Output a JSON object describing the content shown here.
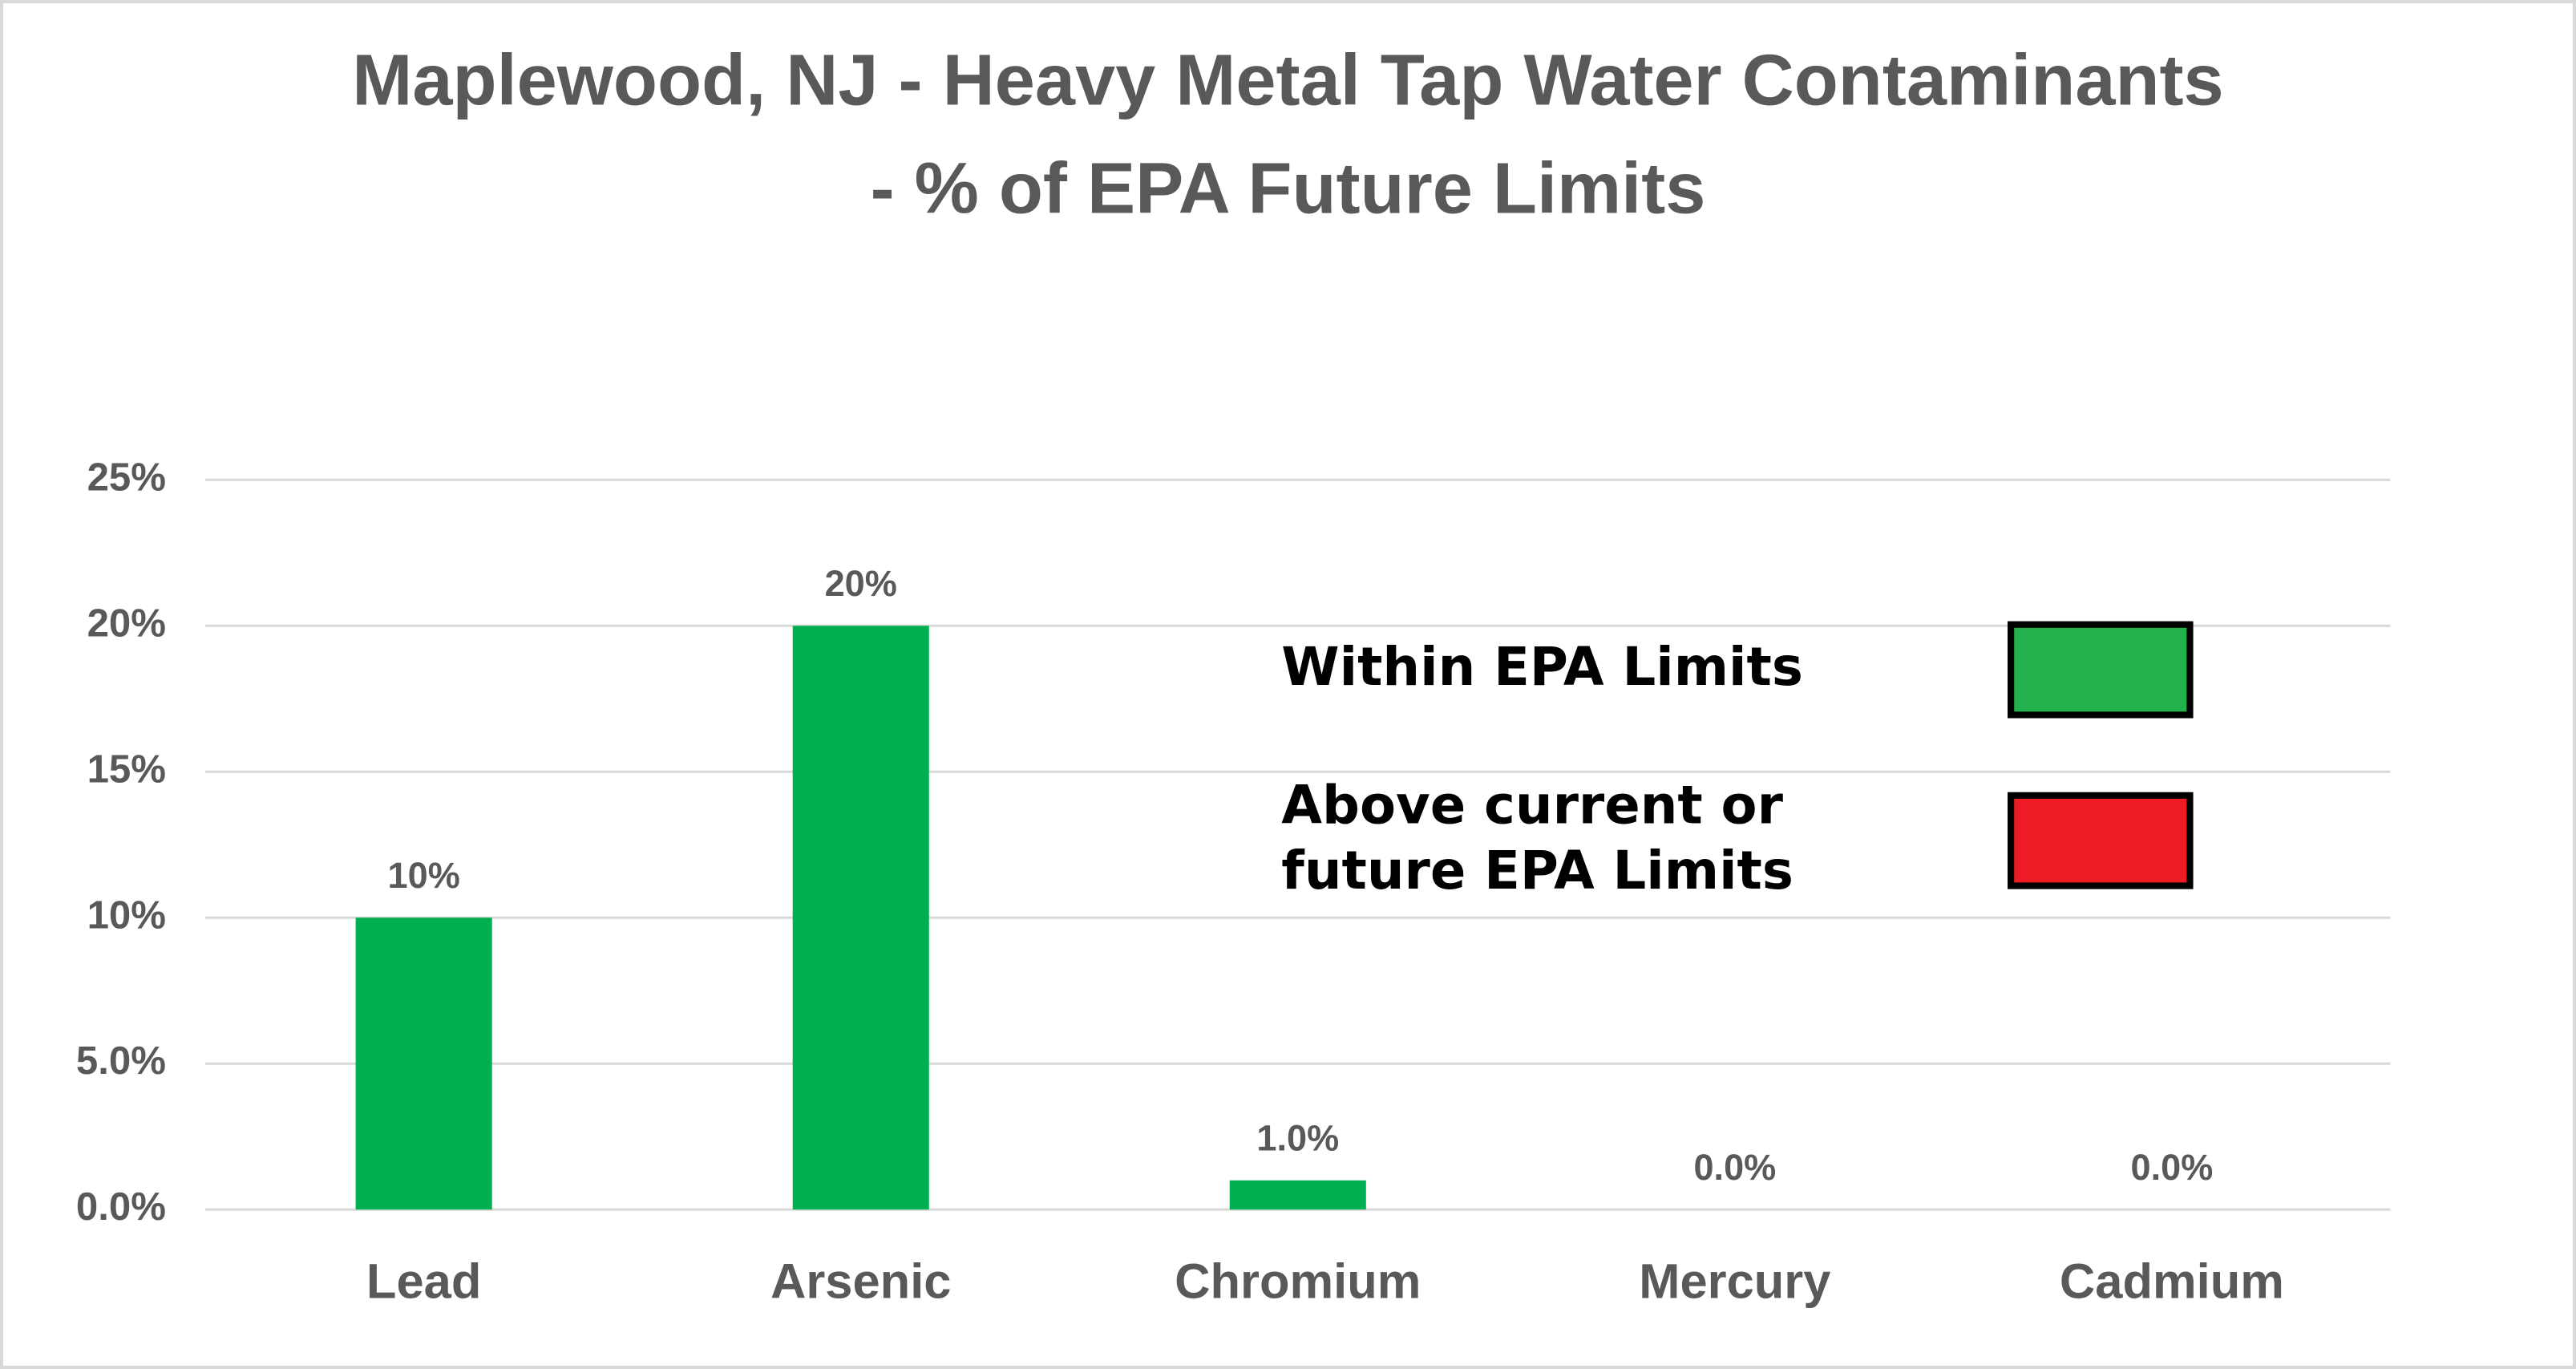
{
  "chart_data": {
    "type": "bar",
    "title": [
      "Maplewood, NJ - Heavy Metal Tap Water Contaminants",
      "- % of EPA Future Limits"
    ],
    "categories": [
      "Lead",
      "Arsenic",
      "Chromium",
      "Mercury",
      "Cadmium"
    ],
    "values": [
      10,
      20,
      1,
      0,
      0
    ],
    "value_labels": [
      "10%",
      "20%",
      "1.0%",
      "0.0%",
      "0.0%"
    ],
    "color": "#00b050",
    "ylim": [
      0,
      25
    ],
    "yticks": [
      {
        "value": 0,
        "label": "0.0%"
      },
      {
        "value": 5,
        "label": "5.0%"
      },
      {
        "value": 10,
        "label": "10%"
      },
      {
        "value": 15,
        "label": "15%"
      },
      {
        "value": 20,
        "label": "20%"
      },
      {
        "value": 25,
        "label": "25%"
      }
    ],
    "grid": true,
    "legend": [
      {
        "lines": [
          "Within EPA Limits"
        ],
        "color": "#22b14c"
      },
      {
        "lines": [
          "Above current or",
          "future EPA Limits"
        ],
        "color": "#ed1c24"
      }
    ]
  }
}
